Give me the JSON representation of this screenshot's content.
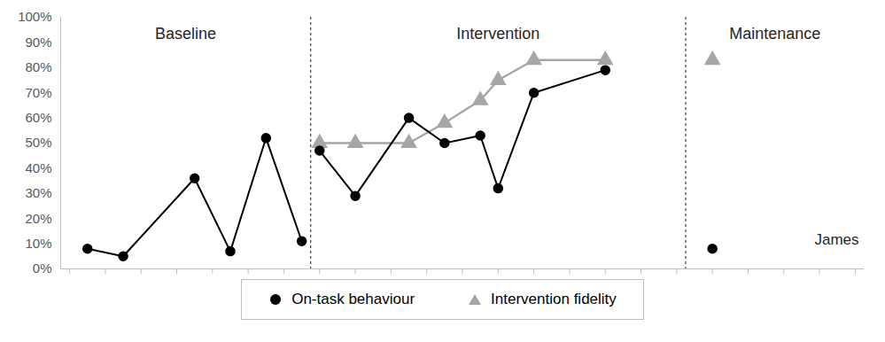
{
  "chart_data": {
    "type": "line",
    "x": [
      1,
      3,
      7,
      9,
      11,
      13,
      14,
      16,
      19,
      21,
      23,
      24,
      26,
      30,
      36
    ],
    "series": [
      {
        "name": "On-task behaviour",
        "color": "#000000",
        "marker": "circle",
        "values": [
          8,
          5,
          36,
          7,
          52,
          11,
          47,
          29,
          60,
          50,
          53,
          32,
          70,
          79,
          8
        ]
      },
      {
        "name": "Intervention fidelity",
        "color": "#a6a6a6",
        "marker": "triangle",
        "values": [
          null,
          null,
          null,
          null,
          null,
          null,
          50,
          50,
          50,
          58,
          67,
          75,
          83,
          83,
          83
        ]
      }
    ],
    "phases": [
      "Baseline",
      "Intervention",
      "Maintenance"
    ],
    "phase_lines": [
      13.5,
      34.5
    ],
    "participant": "James",
    "xlim": [
      -0.5,
      44.5
    ],
    "xticks": [
      0,
      2,
      4,
      6,
      8,
      10,
      12,
      14,
      16,
      18,
      20,
      22,
      24,
      26,
      28,
      30,
      32,
      34,
      36,
      38,
      40,
      42,
      44
    ],
    "ylim": [
      0,
      100
    ],
    "yticks": [
      {
        "value": 0,
        "label": "0%"
      },
      {
        "value": 10,
        "label": "10%"
      },
      {
        "value": 20,
        "label": "20%"
      },
      {
        "value": 30,
        "label": "30%"
      },
      {
        "value": 40,
        "label": "40%"
      },
      {
        "value": 50,
        "label": "50%"
      },
      {
        "value": 60,
        "label": "60%"
      },
      {
        "value": 70,
        "label": "70%"
      },
      {
        "value": 80,
        "label": "80%"
      },
      {
        "value": 90,
        "label": "90%"
      },
      {
        "value": 100,
        "label": "100%"
      }
    ],
    "grid": false,
    "legend": "bottom",
    "tick_labels": "y"
  }
}
